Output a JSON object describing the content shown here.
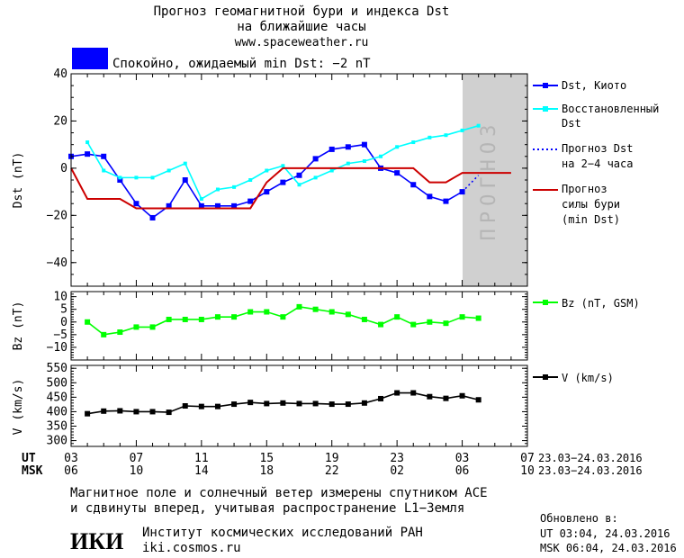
{
  "header": {
    "title": "Прогноз геомагнитной бури и индекса Dst",
    "subtitle": "на ближайшие часы",
    "site": "www.spaceweather.ru",
    "status_text": "Спокойно, ожидаемый min Dst: −2 nT",
    "status_color": "#0000ff"
  },
  "chart_data": [
    {
      "type": "line",
      "ylabel": "Dst (nT)",
      "ylim": [
        -50,
        40
      ],
      "yticks": [
        "40",
        "20",
        "0",
        "−20",
        "−40"
      ],
      "forecast_label": "ПРОГНОЗ",
      "series": [
        {
          "name": "Dst, Киото",
          "color": "#0000ff",
          "x": [
            0,
            1,
            2,
            3,
            4,
            5,
            6,
            7,
            8,
            9,
            10,
            11,
            12,
            13,
            14,
            15,
            16,
            17,
            18,
            19,
            20,
            21,
            22,
            23,
            24
          ],
          "values": [
            5,
            6,
            5,
            -5,
            -15,
            -21,
            -16,
            -5,
            -16,
            -16,
            -16,
            -14,
            -10,
            -6,
            -3,
            4,
            8,
            9,
            10,
            0,
            -2,
            -7,
            -12,
            -14,
            -10
          ]
        },
        {
          "name": "Восстановленный Dst",
          "color": "#00ffff",
          "x": [
            1,
            2,
            3,
            4,
            5,
            6,
            7,
            8,
            9,
            10,
            11,
            12,
            13,
            14,
            15,
            16,
            17,
            18,
            19,
            20,
            21,
            22,
            23,
            24,
            25
          ],
          "values": [
            11,
            -1,
            -4,
            -4,
            -4,
            -1,
            2,
            -13,
            -9,
            -8,
            -5,
            -1,
            1,
            -7,
            -4,
            -1,
            2,
            3,
            5,
            9,
            11,
            13,
            14,
            16,
            18
          ]
        },
        {
          "name": "Прогноз Dst на 2-4 часа",
          "color": "#0000ff",
          "x": [
            24,
            25
          ],
          "values": [
            -10,
            -3
          ]
        },
        {
          "name": "Прогноз силы бури (min Dst)",
          "color": "#cc0000",
          "x": [
            0,
            1,
            2,
            3,
            4,
            5,
            6,
            7,
            8,
            9,
            10,
            11,
            12,
            13,
            14,
            15,
            16,
            17,
            18,
            19,
            20,
            21,
            22,
            23,
            24,
            25,
            26,
            27
          ],
          "values": [
            0,
            -13,
            -13,
            -13,
            -17,
            -17,
            -17,
            -17,
            -17,
            -17,
            -17,
            -17,
            -6,
            0,
            0,
            0,
            0,
            0,
            0,
            0,
            0,
            0,
            -6,
            -6,
            -2,
            -2,
            -2,
            -2
          ]
        }
      ]
    },
    {
      "type": "line",
      "ylabel": "Bz (nT)",
      "ylim": [
        -15,
        12
      ],
      "yticks": [
        "10",
        "5",
        "0",
        "−5",
        "−10"
      ],
      "series": [
        {
          "name": "Bz (nT, GSM)",
          "color": "#00ff00",
          "x": [
            1,
            2,
            3,
            4,
            5,
            6,
            7,
            8,
            9,
            10,
            11,
            12,
            13,
            14,
            15,
            16,
            17,
            18,
            19,
            20,
            21,
            22,
            23,
            24,
            25
          ],
          "values": [
            0,
            -5,
            -4,
            -2,
            -2,
            1,
            1,
            1,
            2,
            2,
            4,
            4,
            2,
            6,
            5,
            4,
            3,
            1,
            -1,
            2,
            -1,
            0,
            -0.5,
            2,
            1.5
          ]
        }
      ]
    },
    {
      "type": "line",
      "ylabel": "V (km/s)",
      "ylim": [
        280,
        560
      ],
      "yticks": [
        "550",
        "500",
        "450",
        "400",
        "350",
        "300"
      ],
      "series": [
        {
          "name": "V (km/s)",
          "color": "#000000",
          "x": [
            1,
            2,
            3,
            4,
            5,
            6,
            7,
            8,
            9,
            10,
            11,
            12,
            13,
            14,
            15,
            16,
            17,
            18,
            19,
            20,
            21,
            22,
            23,
            24,
            25
          ],
          "values": [
            393,
            402,
            403,
            400,
            400,
            398,
            420,
            418,
            418,
            426,
            432,
            428,
            430,
            428,
            428,
            426,
            426,
            430,
            445,
            465,
            465,
            452,
            446,
            455,
            441
          ]
        }
      ]
    }
  ],
  "x_axis": {
    "ut_label": "UT",
    "msk_label": "MSK",
    "ut_ticks": [
      "03",
      "07",
      "11",
      "15",
      "19",
      "23",
      "03",
      "07"
    ],
    "msk_ticks": [
      "06",
      "10",
      "14",
      "18",
      "22",
      "02",
      "06",
      "10"
    ],
    "date_range_ut": "23.03−24.03.2016",
    "date_range_msk": "23.03−24.03.2016"
  },
  "footer": {
    "note_line1": "Магнитное поле и солнечный ветер измерены спутником ACE",
    "note_line2": "и сдвинуты вперед, учитывая распространение L1−Земля",
    "logo_text": "ИКИ",
    "institute": "Институт космических исследований РАН",
    "institute_url": "iki.cosmos.ru",
    "updated_label": "Обновлено в:",
    "updated_ut": "UT  03:04, 24.03.2016",
    "updated_msk": "MSK 06:04, 24.03.2016"
  },
  "legend": {
    "dst_kyoto": "Dst, Киото",
    "restored_1": "Восстановленный",
    "restored_2": "Dst",
    "forecast_1": "Прогноз Dst",
    "forecast_2": "на 2−4 часа",
    "storm_1": "Прогноз",
    "storm_2": "силы бури",
    "storm_3": "(min Dst)",
    "bz": "Bz (nT, GSM)",
    "v": "V (km/s)"
  }
}
